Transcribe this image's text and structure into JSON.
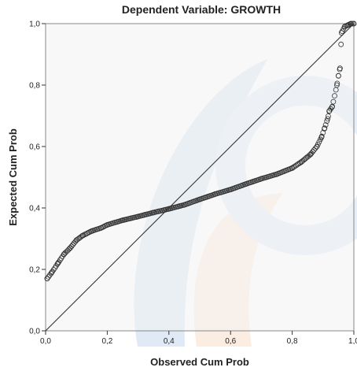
{
  "chart_data": {
    "type": "scatter",
    "subtype": "normal-p-p-plot",
    "title": "Dependent Variable: GROWTH",
    "xlabel": "Observed Cum Prob",
    "ylabel": "Expected Cum Prob",
    "xlim": [
      0,
      1
    ],
    "ylim": [
      0,
      1
    ],
    "x_ticks": [
      "0,0",
      "0,2",
      "0,4",
      "0,6",
      "0,8",
      "1,0"
    ],
    "y_ticks": [
      "0,0",
      "0,2",
      "0,4",
      "0,6",
      "0,8",
      "1,0"
    ],
    "grid": false,
    "reference_line": {
      "from": [
        0,
        0
      ],
      "to": [
        1,
        1
      ]
    },
    "series": [
      {
        "marker": "open-circle",
        "anchors": [
          [
            0.005,
            0.17
          ],
          [
            0.02,
            0.19
          ],
          [
            0.04,
            0.22
          ],
          [
            0.06,
            0.25
          ],
          [
            0.08,
            0.27
          ],
          [
            0.1,
            0.295
          ],
          [
            0.12,
            0.31
          ],
          [
            0.15,
            0.325
          ],
          [
            0.18,
            0.335
          ],
          [
            0.2,
            0.345
          ],
          [
            0.25,
            0.36
          ],
          [
            0.3,
            0.372
          ],
          [
            0.35,
            0.385
          ],
          [
            0.4,
            0.397
          ],
          [
            0.45,
            0.41
          ],
          [
            0.5,
            0.428
          ],
          [
            0.55,
            0.445
          ],
          [
            0.6,
            0.46
          ],
          [
            0.65,
            0.478
          ],
          [
            0.7,
            0.495
          ],
          [
            0.75,
            0.51
          ],
          [
            0.8,
            0.53
          ],
          [
            0.83,
            0.55
          ],
          [
            0.86,
            0.575
          ],
          [
            0.88,
            0.6
          ],
          [
            0.895,
            0.63
          ],
          [
            0.905,
            0.66
          ],
          [
            0.915,
            0.69
          ],
          [
            0.92,
            0.715
          ],
          [
            0.93,
            0.73
          ],
          [
            0.945,
            0.8
          ],
          [
            0.95,
            0.83
          ],
          [
            0.955,
            0.855
          ],
          [
            0.96,
            0.97
          ],
          [
            0.97,
            0.99
          ],
          [
            0.98,
            0.995
          ],
          [
            0.99,
            1.0
          ],
          [
            1.0,
            1.0
          ]
        ],
        "n_points": 240
      }
    ],
    "colors": {
      "marker": "#333333",
      "line": "#333333",
      "plot_bg": "#f2f2f2",
      "border": "#888888"
    }
  }
}
